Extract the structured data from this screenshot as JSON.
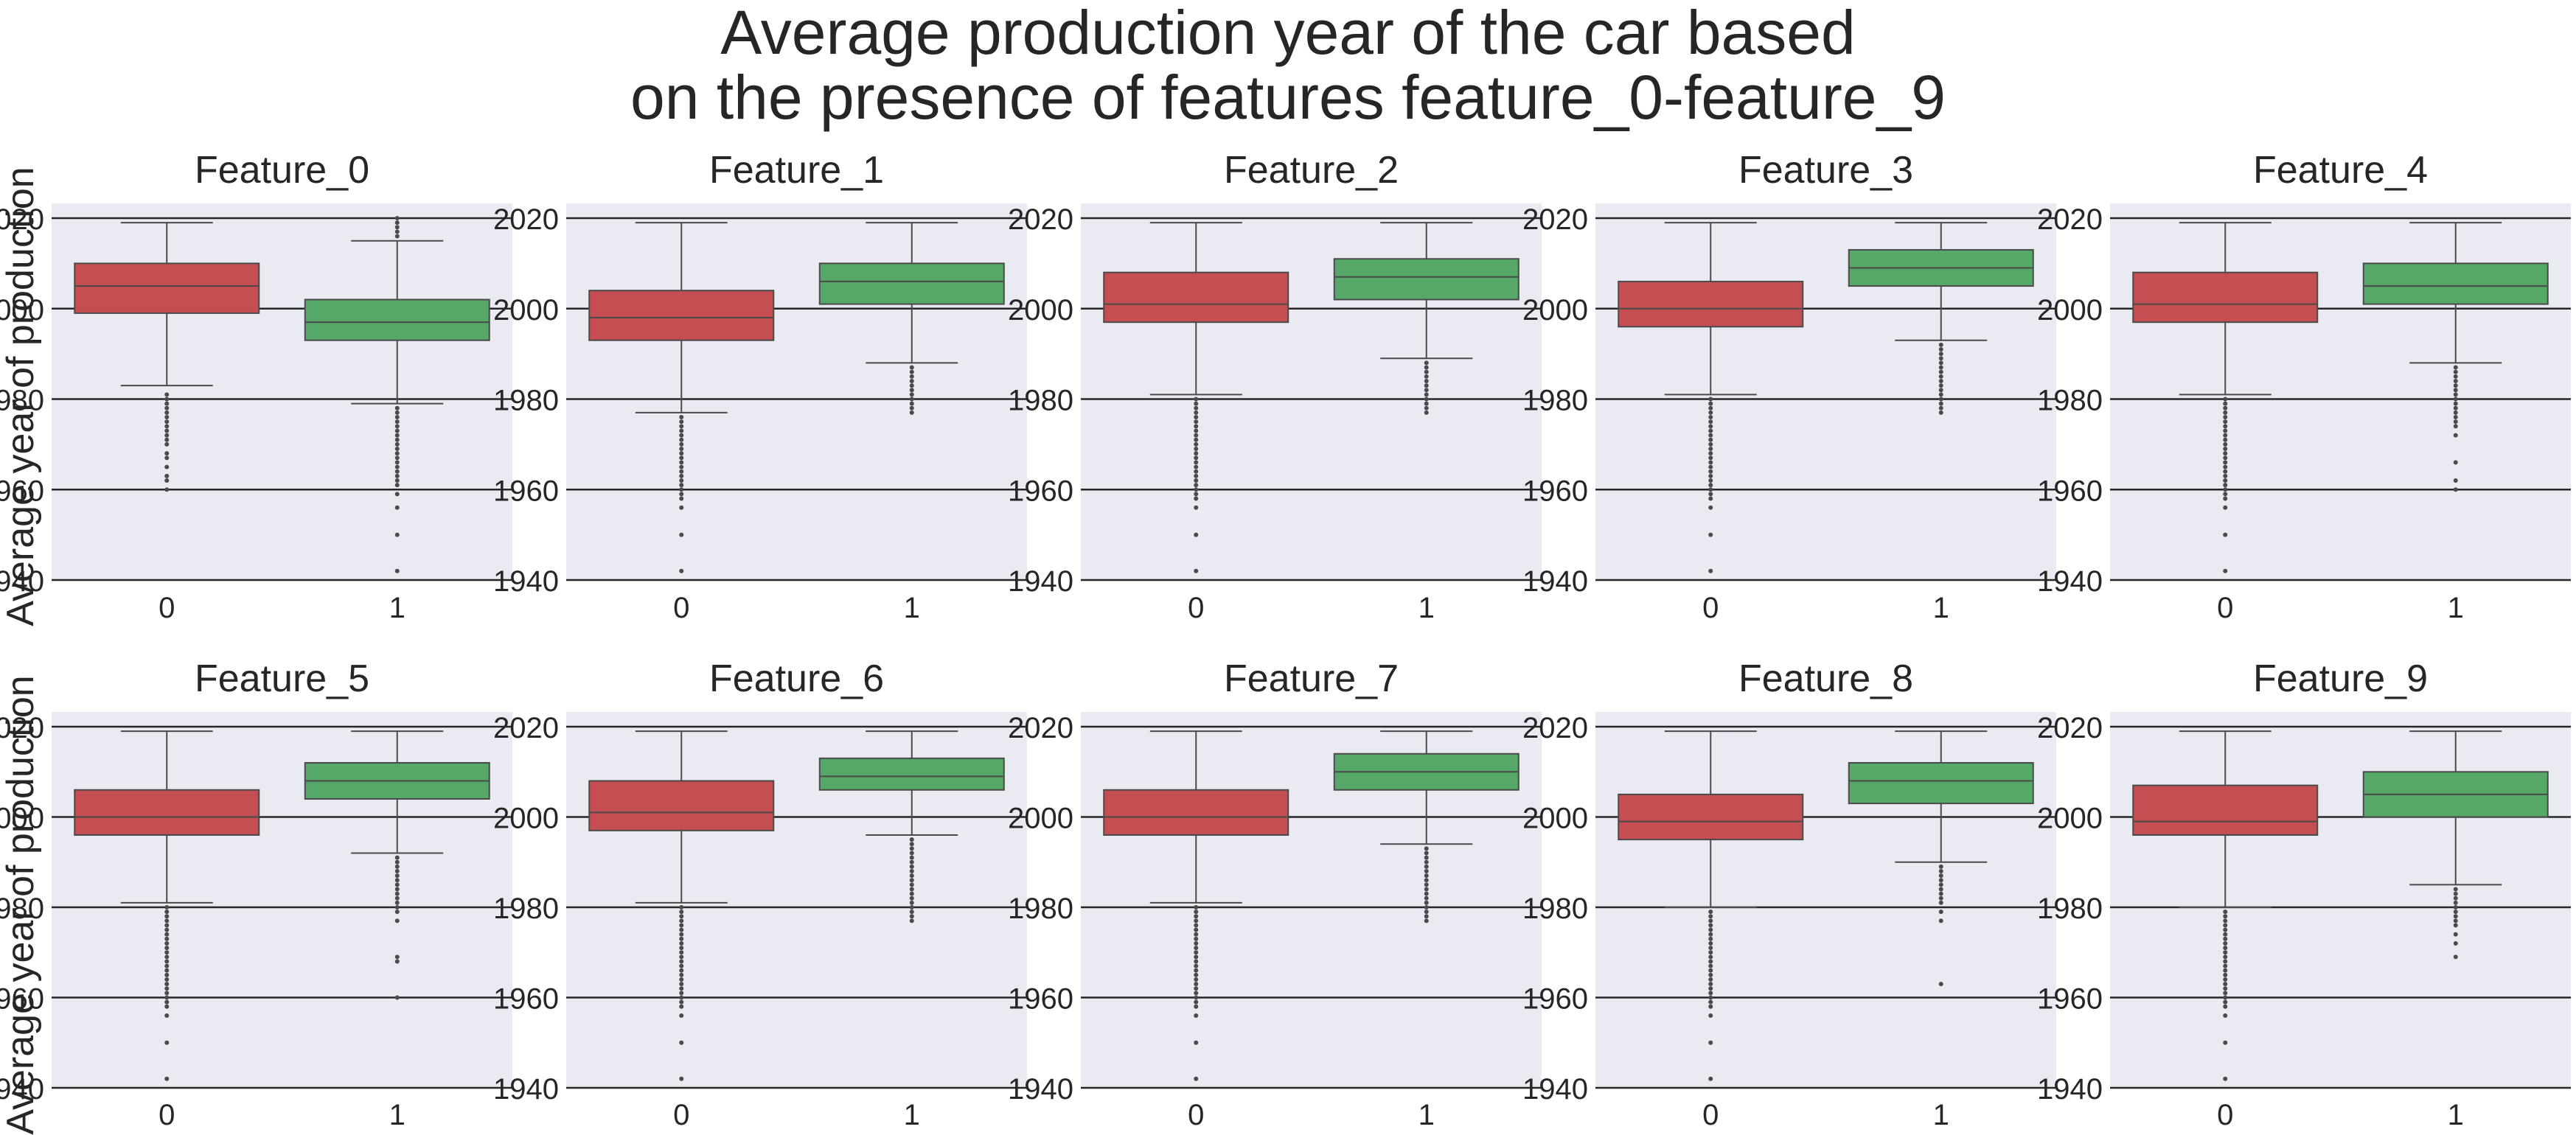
{
  "figure": {
    "title_line1": "Average production year of the car based",
    "title_line2": "on the presence of features feature_0-feature_9",
    "ylabel": "Average year of production"
  },
  "style": {
    "panel_bg": "#eaeaf2",
    "grid_color": "#262626",
    "box0_color": "#c44e52",
    "box1_color": "#55a868",
    "line_color": "#4a4a4a"
  },
  "chart_data": {
    "type": "box",
    "ylim": [
      1940,
      2022
    ],
    "yticks": [
      1940,
      1960,
      1980,
      2000,
      2020
    ],
    "categories": [
      "0",
      "1"
    ],
    "grid": "horizontal",
    "panels": [
      {
        "title": "Feature_0",
        "boxes": [
          {
            "category": "0",
            "q1": 1999,
            "median": 2005,
            "q3": 2010,
            "whisker_low": 1983,
            "whisker_high": 2019,
            "outliers": [
              1960,
              1962,
              1963,
              1965,
              1967,
              1968,
              1970,
              1971,
              1972,
              1973,
              1974,
              1975,
              1976,
              1977,
              1978,
              1979,
              1980,
              1981
            ]
          },
          {
            "category": "1",
            "q1": 1993,
            "median": 1997,
            "q3": 2002,
            "whisker_low": 1979,
            "whisker_high": 2015,
            "outliers": [
              1942,
              1950,
              1956,
              1959,
              1961,
              1962,
              1963,
              1964,
              1965,
              1966,
              1967,
              1968,
              1969,
              1970,
              1971,
              1972,
              1973,
              1974,
              1975,
              1976,
              1977,
              1978,
              2016,
              2017,
              2018,
              2019,
              2020
            ]
          }
        ]
      },
      {
        "title": "Feature_1",
        "boxes": [
          {
            "category": "0",
            "q1": 1993,
            "median": 1998,
            "q3": 2004,
            "whisker_low": 1977,
            "whisker_high": 2019,
            "outliers": [
              1942,
              1950,
              1956,
              1958,
              1959,
              1960,
              1961,
              1962,
              1963,
              1964,
              1965,
              1966,
              1967,
              1968,
              1969,
              1970,
              1971,
              1972,
              1973,
              1974,
              1975,
              1976
            ]
          },
          {
            "category": "1",
            "q1": 2001,
            "median": 2006,
            "q3": 2010,
            "whisker_low": 1988,
            "whisker_high": 2019,
            "outliers": [
              1977,
              1978,
              1979,
              1980,
              1981,
              1982,
              1983,
              1984,
              1985,
              1986,
              1987
            ]
          }
        ]
      },
      {
        "title": "Feature_2",
        "boxes": [
          {
            "category": "0",
            "q1": 1997,
            "median": 2001,
            "q3": 2008,
            "whisker_low": 1981,
            "whisker_high": 2019,
            "outliers": [
              1942,
              1950,
              1956,
              1958,
              1959,
              1960,
              1961,
              1962,
              1963,
              1964,
              1965,
              1966,
              1967,
              1968,
              1969,
              1970,
              1971,
              1972,
              1973,
              1974,
              1975,
              1976,
              1977,
              1978,
              1979,
              1980
            ]
          },
          {
            "category": "1",
            "q1": 2002,
            "median": 2007,
            "q3": 2011,
            "whisker_low": 1989,
            "whisker_high": 2019,
            "outliers": [
              1977,
              1978,
              1979,
              1980,
              1981,
              1982,
              1983,
              1984,
              1985,
              1986,
              1987,
              1988
            ]
          }
        ]
      },
      {
        "title": "Feature_3",
        "boxes": [
          {
            "category": "0",
            "q1": 1996,
            "median": 2000,
            "q3": 2006,
            "whisker_low": 1981,
            "whisker_high": 2019,
            "outliers": [
              1942,
              1950,
              1956,
              1958,
              1959,
              1960,
              1961,
              1962,
              1963,
              1964,
              1965,
              1966,
              1967,
              1968,
              1969,
              1970,
              1971,
              1972,
              1973,
              1974,
              1975,
              1976,
              1977,
              1978,
              1979,
              1980
            ]
          },
          {
            "category": "1",
            "q1": 2005,
            "median": 2009,
            "q3": 2013,
            "whisker_low": 1993,
            "whisker_high": 2019,
            "outliers": [
              1977,
              1978,
              1979,
              1980,
              1981,
              1982,
              1983,
              1984,
              1985,
              1986,
              1987,
              1988,
              1989,
              1990,
              1991,
              1992
            ]
          }
        ]
      },
      {
        "title": "Feature_4",
        "boxes": [
          {
            "category": "0",
            "q1": 1997,
            "median": 2001,
            "q3": 2008,
            "whisker_low": 1981,
            "whisker_high": 2019,
            "outliers": [
              1942,
              1950,
              1956,
              1958,
              1959,
              1960,
              1961,
              1962,
              1963,
              1964,
              1965,
              1966,
              1967,
              1968,
              1969,
              1970,
              1971,
              1972,
              1973,
              1974,
              1975,
              1976,
              1977,
              1978,
              1979,
              1980
            ]
          },
          {
            "category": "1",
            "q1": 2001,
            "median": 2005,
            "q3": 2010,
            "whisker_low": 1988,
            "whisker_high": 2019,
            "outliers": [
              1960,
              1962,
              1966,
              1972,
              1974,
              1975,
              1976,
              1977,
              1978,
              1979,
              1980,
              1981,
              1982,
              1983,
              1984,
              1985,
              1986,
              1987
            ]
          }
        ]
      },
      {
        "title": "Feature_5",
        "boxes": [
          {
            "category": "0",
            "q1": 1996,
            "median": 2000,
            "q3": 2006,
            "whisker_low": 1981,
            "whisker_high": 2019,
            "outliers": [
              1942,
              1950,
              1956,
              1958,
              1959,
              1960,
              1961,
              1962,
              1963,
              1964,
              1965,
              1966,
              1967,
              1968,
              1969,
              1970,
              1971,
              1972,
              1973,
              1974,
              1975,
              1976,
              1977,
              1978,
              1979,
              1980
            ]
          },
          {
            "category": "1",
            "q1": 2004,
            "median": 2008,
            "q3": 2012,
            "whisker_low": 1992,
            "whisker_high": 2019,
            "outliers": [
              1960,
              1968,
              1969,
              1977,
              1979,
              1980,
              1981,
              1982,
              1983,
              1984,
              1985,
              1986,
              1987,
              1988,
              1989,
              1990,
              1991
            ]
          }
        ]
      },
      {
        "title": "Feature_6",
        "boxes": [
          {
            "category": "0",
            "q1": 1997,
            "median": 2001,
            "q3": 2008,
            "whisker_low": 1981,
            "whisker_high": 2019,
            "outliers": [
              1942,
              1950,
              1956,
              1958,
              1959,
              1960,
              1961,
              1962,
              1963,
              1964,
              1965,
              1966,
              1967,
              1968,
              1969,
              1970,
              1971,
              1972,
              1973,
              1974,
              1975,
              1976,
              1977,
              1978,
              1979,
              1980
            ]
          },
          {
            "category": "1",
            "q1": 2006,
            "median": 2009,
            "q3": 2013,
            "whisker_low": 1996,
            "whisker_high": 2019,
            "outliers": [
              1977,
              1978,
              1979,
              1980,
              1981,
              1982,
              1983,
              1984,
              1985,
              1986,
              1987,
              1988,
              1989,
              1990,
              1991,
              1992,
              1993,
              1994,
              1995
            ]
          }
        ]
      },
      {
        "title": "Feature_7",
        "boxes": [
          {
            "category": "0",
            "q1": 1996,
            "median": 2000,
            "q3": 2006,
            "whisker_low": 1981,
            "whisker_high": 2019,
            "outliers": [
              1942,
              1950,
              1956,
              1958,
              1959,
              1960,
              1961,
              1962,
              1963,
              1964,
              1965,
              1966,
              1967,
              1968,
              1969,
              1970,
              1971,
              1972,
              1973,
              1974,
              1975,
              1976,
              1977,
              1978,
              1979,
              1980
            ]
          },
          {
            "category": "1",
            "q1": 2006,
            "median": 2010,
            "q3": 2014,
            "whisker_low": 1994,
            "whisker_high": 2019,
            "outliers": [
              1977,
              1978,
              1979,
              1980,
              1981,
              1982,
              1983,
              1984,
              1985,
              1986,
              1987,
              1988,
              1989,
              1990,
              1991,
              1992,
              1993
            ]
          }
        ]
      },
      {
        "title": "Feature_8",
        "boxes": [
          {
            "category": "0",
            "q1": 1995,
            "median": 1999,
            "q3": 2005,
            "whisker_low": 1980,
            "whisker_high": 2019,
            "outliers": [
              1942,
              1950,
              1956,
              1958,
              1959,
              1960,
              1961,
              1962,
              1963,
              1964,
              1965,
              1966,
              1967,
              1968,
              1969,
              1970,
              1971,
              1972,
              1973,
              1974,
              1975,
              1976,
              1977,
              1978,
              1979
            ]
          },
          {
            "category": "1",
            "q1": 2003,
            "median": 2008,
            "q3": 2012,
            "whisker_low": 1990,
            "whisker_high": 2019,
            "outliers": [
              1963,
              1977,
              1979,
              1981,
              1982,
              1983,
              1984,
              1985,
              1986,
              1987,
              1988,
              1989
            ]
          }
        ]
      },
      {
        "title": "Feature_9",
        "boxes": [
          {
            "category": "0",
            "q1": 1996,
            "median": 1999,
            "q3": 2007,
            "whisker_low": 1980,
            "whisker_high": 2019,
            "outliers": [
              1942,
              1950,
              1956,
              1958,
              1959,
              1960,
              1961,
              1962,
              1963,
              1964,
              1965,
              1966,
              1967,
              1968,
              1969,
              1970,
              1971,
              1972,
              1973,
              1974,
              1975,
              1976,
              1977,
              1978,
              1979
            ]
          },
          {
            "category": "1",
            "q1": 2000,
            "median": 2005,
            "q3": 2010,
            "whisker_low": 1985,
            "whisker_high": 2019,
            "outliers": [
              1969,
              1972,
              1974,
              1976,
              1977,
              1978,
              1979,
              1980,
              1981,
              1982,
              1983,
              1984
            ]
          }
        ]
      }
    ]
  }
}
